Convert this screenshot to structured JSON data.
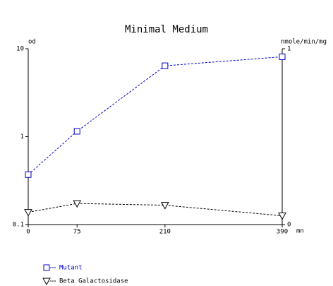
{
  "chart_data": {
    "type": "line",
    "title": "Minimal Medium",
    "x_label": "mn",
    "y_label": "od",
    "y2_label": "nmole/min/mg",
    "x": [
      0,
      75,
      210,
      390
    ],
    "xlim": [
      0,
      390
    ],
    "xticks": [
      0,
      75,
      210,
      390
    ],
    "ylim": [
      0.1,
      10
    ],
    "yticks": [
      0.1,
      1,
      10
    ],
    "ylog": true,
    "y2lim": [
      0,
      1
    ],
    "y2ticks": [
      0,
      1
    ],
    "series": [
      {
        "name": "Mutant",
        "color": "#0000cc",
        "marker": "square",
        "values": [
          0.37,
          1.15,
          6.4,
          8.1
        ]
      },
      {
        "name": "Beta Galactosidase",
        "color": "#000000",
        "marker": "triangle-down",
        "axis": "y2",
        "values": [
          0.07,
          0.12,
          0.11,
          0.05
        ]
      }
    ]
  }
}
